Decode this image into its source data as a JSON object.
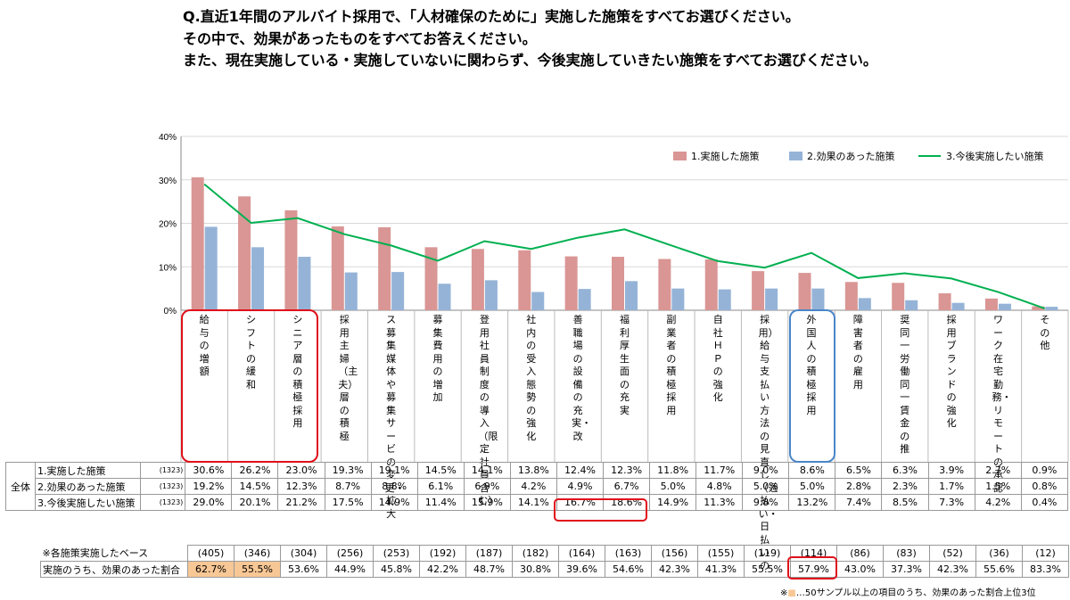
{
  "question": {
    "line1": "Q.直近1年間のアルバイト採用で、「人材確保のために」実施した施策をすべてお選びください。",
    "line2": "その中で、効果があったものをすべてお答えください。",
    "line3": "また、現在実施している・実施していないに関わらず、今後実施していきたい施策をすべてお選びください。"
  },
  "chart_data": {
    "type": "bar",
    "categories": [
      "給与の増額",
      "シフトの緩和",
      "シニア層の積極採用",
      "主婦（主夫）層の積極採用",
      "募集媒体や募集サービスの変更・拡大",
      "募集費用の増加",
      "社員登用制度の導入（限定社員含む）",
      "社内の受入態勢の強化",
      "職場の設備の充実・改善",
      "福利厚生面の充実",
      "副業者の積極採用",
      "自社HPの強化",
      "給与支払い方法の見直し（週払い・日払いの採用）",
      "外国人の積極採用",
      "障害者の雇用",
      "同一労働同一賃金の推奨",
      "採用ブランドの強化",
      "在宅勤務・リモートワークの承認",
      "その他"
    ],
    "category_labels": [
      "給与の増額",
      "シフトの緩和",
      "シニア層の積極採用",
      "採用主婦（主夫）層の積極",
      "ス募集媒体や募集サービの変更・拡大",
      "募集費用の増加",
      "登用社員制度の導入（限定社員含む）",
      "社内の受入態勢の強化",
      "善職場の設備の充実・改",
      "福利厚生面の充実",
      "副業者の積極採用",
      "自社ＨＰの強化",
      "採用）給与支払い方法の見直し（週払い・日払いの",
      "外国人の積極採用",
      "障害者の雇用",
      "奨同一労働同一賃金の推",
      "採用ブランドの強化",
      "ワーク在宅勤務・リモートの承認",
      "その他"
    ],
    "series": [
      {
        "name": "1.実施した施策",
        "type": "bar",
        "color": "#d99694",
        "values": [
          30.6,
          26.2,
          23.0,
          19.3,
          19.1,
          14.5,
          14.1,
          13.8,
          12.4,
          12.3,
          11.8,
          11.7,
          9.0,
          8.6,
          6.5,
          6.3,
          3.9,
          2.7,
          0.9
        ]
      },
      {
        "name": "2.効果のあった施策",
        "type": "bar",
        "color": "#95b3d7",
        "values": [
          19.2,
          14.5,
          12.3,
          8.7,
          8.8,
          6.1,
          6.9,
          4.2,
          4.9,
          6.7,
          5.0,
          4.8,
          5.0,
          5.0,
          2.8,
          2.3,
          1.7,
          1.5,
          0.8
        ]
      },
      {
        "name": "3.今後実施したい施策",
        "type": "line",
        "color": "#00b050",
        "values": [
          29.0,
          20.1,
          21.2,
          17.5,
          14.9,
          11.4,
          15.9,
          14.1,
          16.7,
          18.6,
          14.9,
          11.3,
          9.8,
          13.2,
          7.4,
          8.5,
          7.3,
          4.2,
          0.4
        ]
      }
    ],
    "ylim": [
      0,
      40
    ],
    "yticks": [
      "0%",
      "10%",
      "20%",
      "30%",
      "40%"
    ],
    "legend_position": "top-right",
    "grid": true
  },
  "table1": {
    "group_label": "全体",
    "n_label": "(1323)",
    "rows": [
      {
        "label": "1.実施した施策",
        "values": [
          "30.6%",
          "26.2%",
          "23.0%",
          "19.3%",
          "19.1%",
          "14.5%",
          "14.1%",
          "13.8%",
          "12.4%",
          "12.3%",
          "11.8%",
          "11.7%",
          "9.0%",
          "8.6%",
          "6.5%",
          "6.3%",
          "3.9%",
          "2.7%",
          "0.9%"
        ]
      },
      {
        "label": "2.効果のあった施策",
        "values": [
          "19.2%",
          "14.5%",
          "12.3%",
          "8.7%",
          "8.8%",
          "6.1%",
          "6.9%",
          "4.2%",
          "4.9%",
          "6.7%",
          "5.0%",
          "4.8%",
          "5.0%",
          "5.0%",
          "2.8%",
          "2.3%",
          "1.7%",
          "1.5%",
          "0.8%"
        ]
      },
      {
        "label": "3.今後実施したい施策",
        "values": [
          "29.0%",
          "20.1%",
          "21.2%",
          "17.5%",
          "14.9%",
          "11.4%",
          "15.9%",
          "14.1%",
          "16.7%",
          "18.6%",
          "14.9%",
          "11.3%",
          "9.8%",
          "13.2%",
          "7.4%",
          "8.5%",
          "7.3%",
          "4.2%",
          "0.4%"
        ]
      }
    ]
  },
  "table2": {
    "base_label": "※各施策実施したベース",
    "base_values": [
      "(405)",
      "(346)",
      "(304)",
      "(256)",
      "(253)",
      "(192)",
      "(187)",
      "(182)",
      "(164)",
      "(163)",
      "(156)",
      "(155)",
      "(119)",
      "(114)",
      "(86)",
      "(83)",
      "(52)",
      "(36)",
      "(12)"
    ],
    "ratio_label": "実施のうち、効果のあった割合",
    "ratio_values": [
      "62.7%",
      "55.5%",
      "53.6%",
      "44.9%",
      "45.8%",
      "42.2%",
      "48.7%",
      "30.8%",
      "39.6%",
      "54.6%",
      "42.3%",
      "41.3%",
      "55.5%",
      "57.9%",
      "43.0%",
      "37.3%",
      "42.3%",
      "55.6%",
      "83.3%"
    ],
    "highlight_color": "#f7c795"
  },
  "footnote": {
    "prefix": "※",
    "marker": "■",
    "text": "…50サンプル以上の項目のうち、効果のあった割合上位3位"
  }
}
